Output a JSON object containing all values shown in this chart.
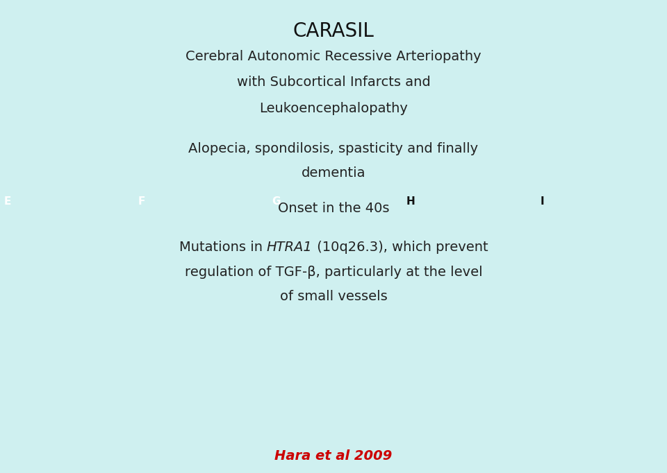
{
  "background_color": "#cff0f0",
  "title": "CARASIL",
  "title_fontsize": 20,
  "title_color": "#111111",
  "subtitle_lines": [
    "Cerebral Autonomic Recessive Arteriopathy",
    "with Subcortical Infarcts and",
    "Leukoencephalopathy"
  ],
  "subtitle_fontsize": 14,
  "text_color": "#222222",
  "body1_line1": "Alopecia, spondilosis, spasticity and finally",
  "body1_line2": "dementia",
  "body2": "Onset in the 40s",
  "mut_pre": "Mutations in ",
  "mut_italic": "HTRA1",
  "mut_post1": " (10q26.3), which prevent",
  "mut_post2": "regulation of TGF-β, particularly at the level",
  "mut_post3": "of small vessels",
  "body_fontsize": 14,
  "image_labels": [
    "E",
    "F",
    "G",
    "H",
    "I"
  ],
  "label_colors": [
    "#ffffff",
    "#ffffff",
    "#ffffff",
    "#111111",
    "#111111"
  ],
  "citation": "Hara et al 2009",
  "citation_color": "#cc0000",
  "citation_fontsize": 14
}
